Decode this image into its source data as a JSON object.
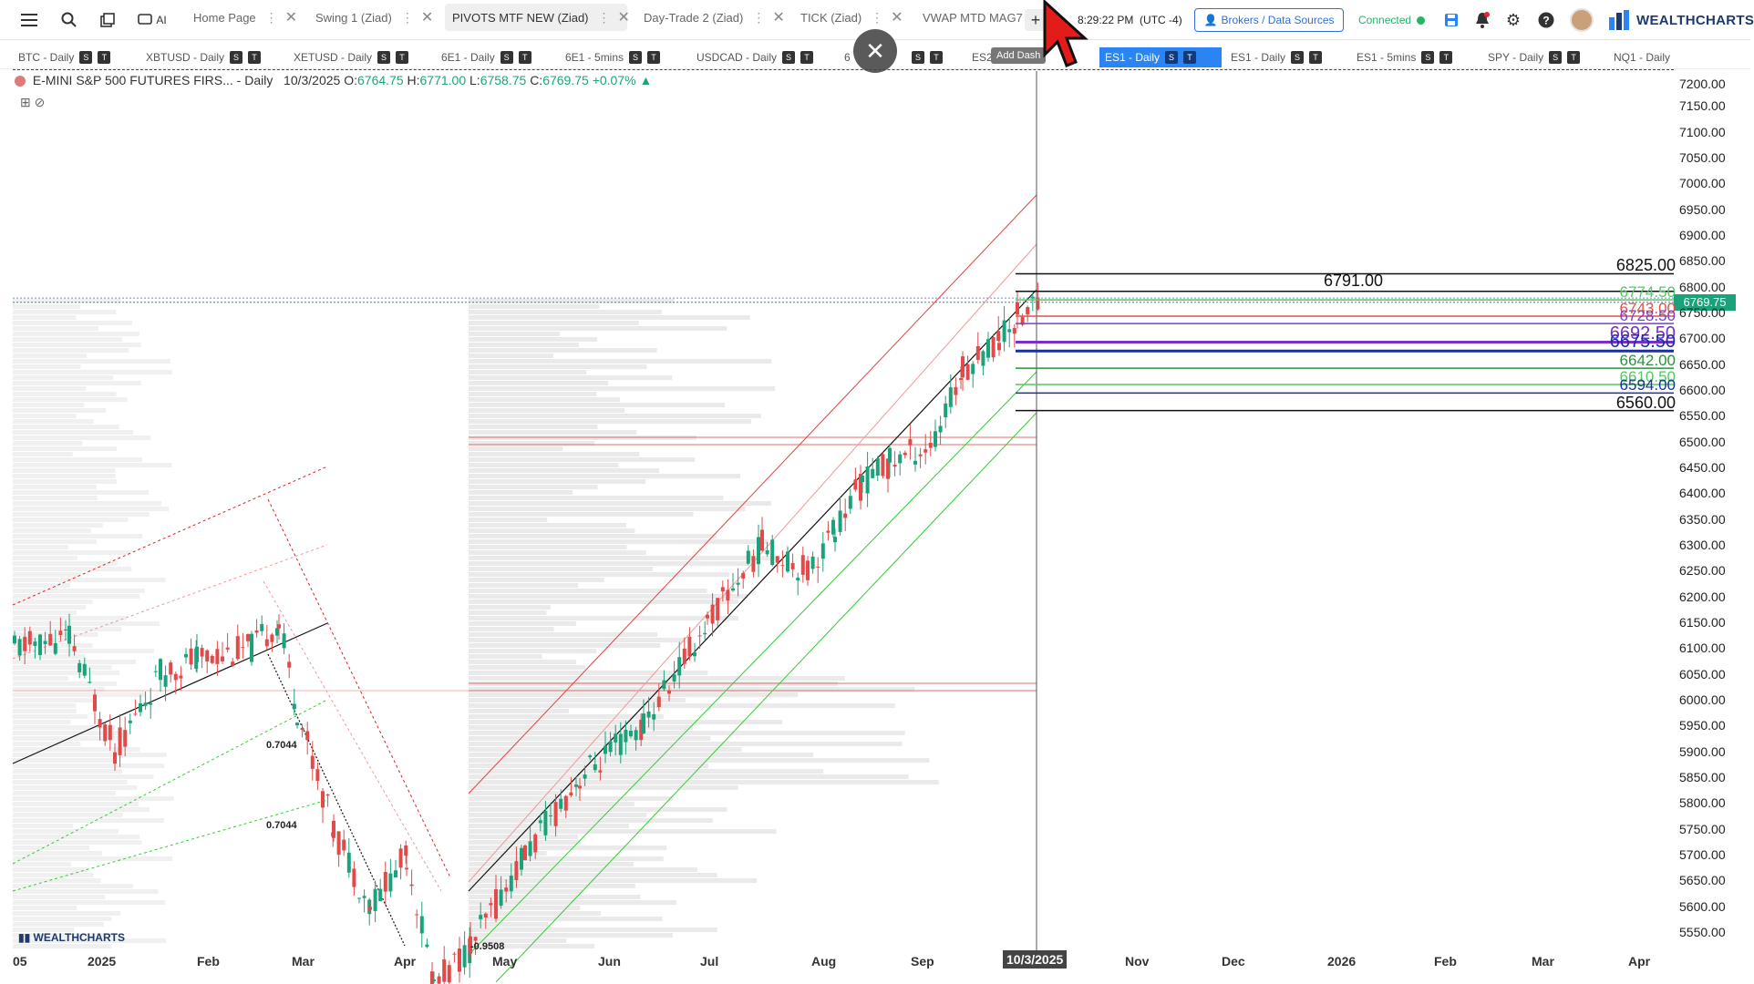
{
  "topbar": {
    "tabs": [
      {
        "label": "Home Page",
        "active": false
      },
      {
        "label": "Swing 1 (Ziad)",
        "active": false
      },
      {
        "label": "PIVOTS MTF NEW (Ziad)",
        "active": true
      },
      {
        "label": "Day-Trade 2 (Ziad)",
        "active": false
      },
      {
        "label": "TICK (Ziad)",
        "active": false
      },
      {
        "label": "VWAP MTD MAG7",
        "active": false
      }
    ],
    "clock": "8:29:22 PM",
    "tz": "(UTC -4)",
    "brokers_label": "Brokers / Data Sources",
    "connected_label": "Connected",
    "logo_text": "WEALTHCHARTS",
    "ai_label": "AI",
    "add_tooltip": "Add Dash"
  },
  "symbols": [
    {
      "label": "BTC - Daily",
      "active": false
    },
    {
      "label": "XBTUSD - Daily",
      "active": false
    },
    {
      "label": "XETUSD - Daily",
      "active": false
    },
    {
      "label": "6E1 - Daily",
      "active": false
    },
    {
      "label": "6E1 - 5mins",
      "active": false
    },
    {
      "label": "USDCAD - Daily",
      "active": false
    },
    {
      "label": "6",
      "active": false
    },
    {
      "label": "ES2",
      "active": false
    },
    {
      "label": "ES1 - Daily",
      "active": true
    },
    {
      "label": "ES1 - Daily",
      "active": false
    },
    {
      "label": "ES1 - 5mins",
      "active": false
    },
    {
      "label": "SPY - Daily",
      "active": false
    },
    {
      "label": "NQ1 - Daily",
      "active": false
    }
  ],
  "symbol_badge_s": "S",
  "symbol_badge_t": "T",
  "layout_count": "12",
  "chart": {
    "title": "E-MINI S&P 500 FUTURES FIRS... - Daily",
    "date": "10/3/2025",
    "o_label": "O:",
    "o_val": "6764.75",
    "h_label": "H:",
    "h_val": "6771.00",
    "l_label": "L:",
    "l_val": "6758.75",
    "c_label": "C:",
    "c_val": "6769.75",
    "change": "+0.07%",
    "last_price": "6769.75",
    "brand": "WEALTHCHARTS"
  },
  "chart_data": {
    "type": "candlestick",
    "ylim": [
      5500,
      7200
    ],
    "price_ticks": [
      "7200.00",
      "7150.00",
      "7100.00",
      "7050.00",
      "7000.00",
      "6950.00",
      "6900.00",
      "6850.00",
      "6800.00",
      "6750.00",
      "6700.00",
      "6650.00",
      "6600.00",
      "6550.00",
      "6500.00",
      "6450.00",
      "6400.00",
      "6350.00",
      "6300.00",
      "6250.00",
      "6200.00",
      "6150.00",
      "6100.00",
      "6050.00",
      "6000.00",
      "5950.00",
      "5900.00",
      "5850.00",
      "5800.00",
      "5750.00",
      "5700.00",
      "5650.00",
      "5600.00",
      "5550.00"
    ],
    "x_labels": [
      "05",
      "2025",
      "Feb",
      "Mar",
      "Apr",
      "May",
      "Jun",
      "Jul",
      "Aug",
      "Sep",
      "10/3/2025",
      "Nov",
      "Dec",
      "2026",
      "Feb",
      "Mar",
      "Apr"
    ],
    "levels": [
      {
        "value": 6825.0,
        "label": "6825.00",
        "color": "#111111"
      },
      {
        "value": 6791.0,
        "label": "6791.00",
        "color": "#111111"
      },
      {
        "value": 6774.5,
        "label": "6774.50",
        "color": "#54c864"
      },
      {
        "value": 6743.0,
        "label": "6743.00",
        "color": "#e05050"
      },
      {
        "value": 6728.5,
        "label": "6728.50",
        "color": "#7a3fc7"
      },
      {
        "value": 6692.5,
        "label": "6692.50",
        "color": "#7a2fc7"
      },
      {
        "value": 6675.5,
        "label": "6675.50",
        "color": "#1a2fa0"
      },
      {
        "value": 6642.0,
        "label": "6642.00",
        "color": "#2f8f3f"
      },
      {
        "value": 6610.5,
        "label": "6610.50",
        "color": "#54c864"
      },
      {
        "value": 6594.0,
        "label": "6594.00",
        "color": "#1a2fa0"
      },
      {
        "value": 6560.0,
        "label": "6560.00",
        "color": "#111111"
      }
    ],
    "fib_labels": [
      "0.7044",
      "0.7044",
      "-0.9508"
    ]
  }
}
